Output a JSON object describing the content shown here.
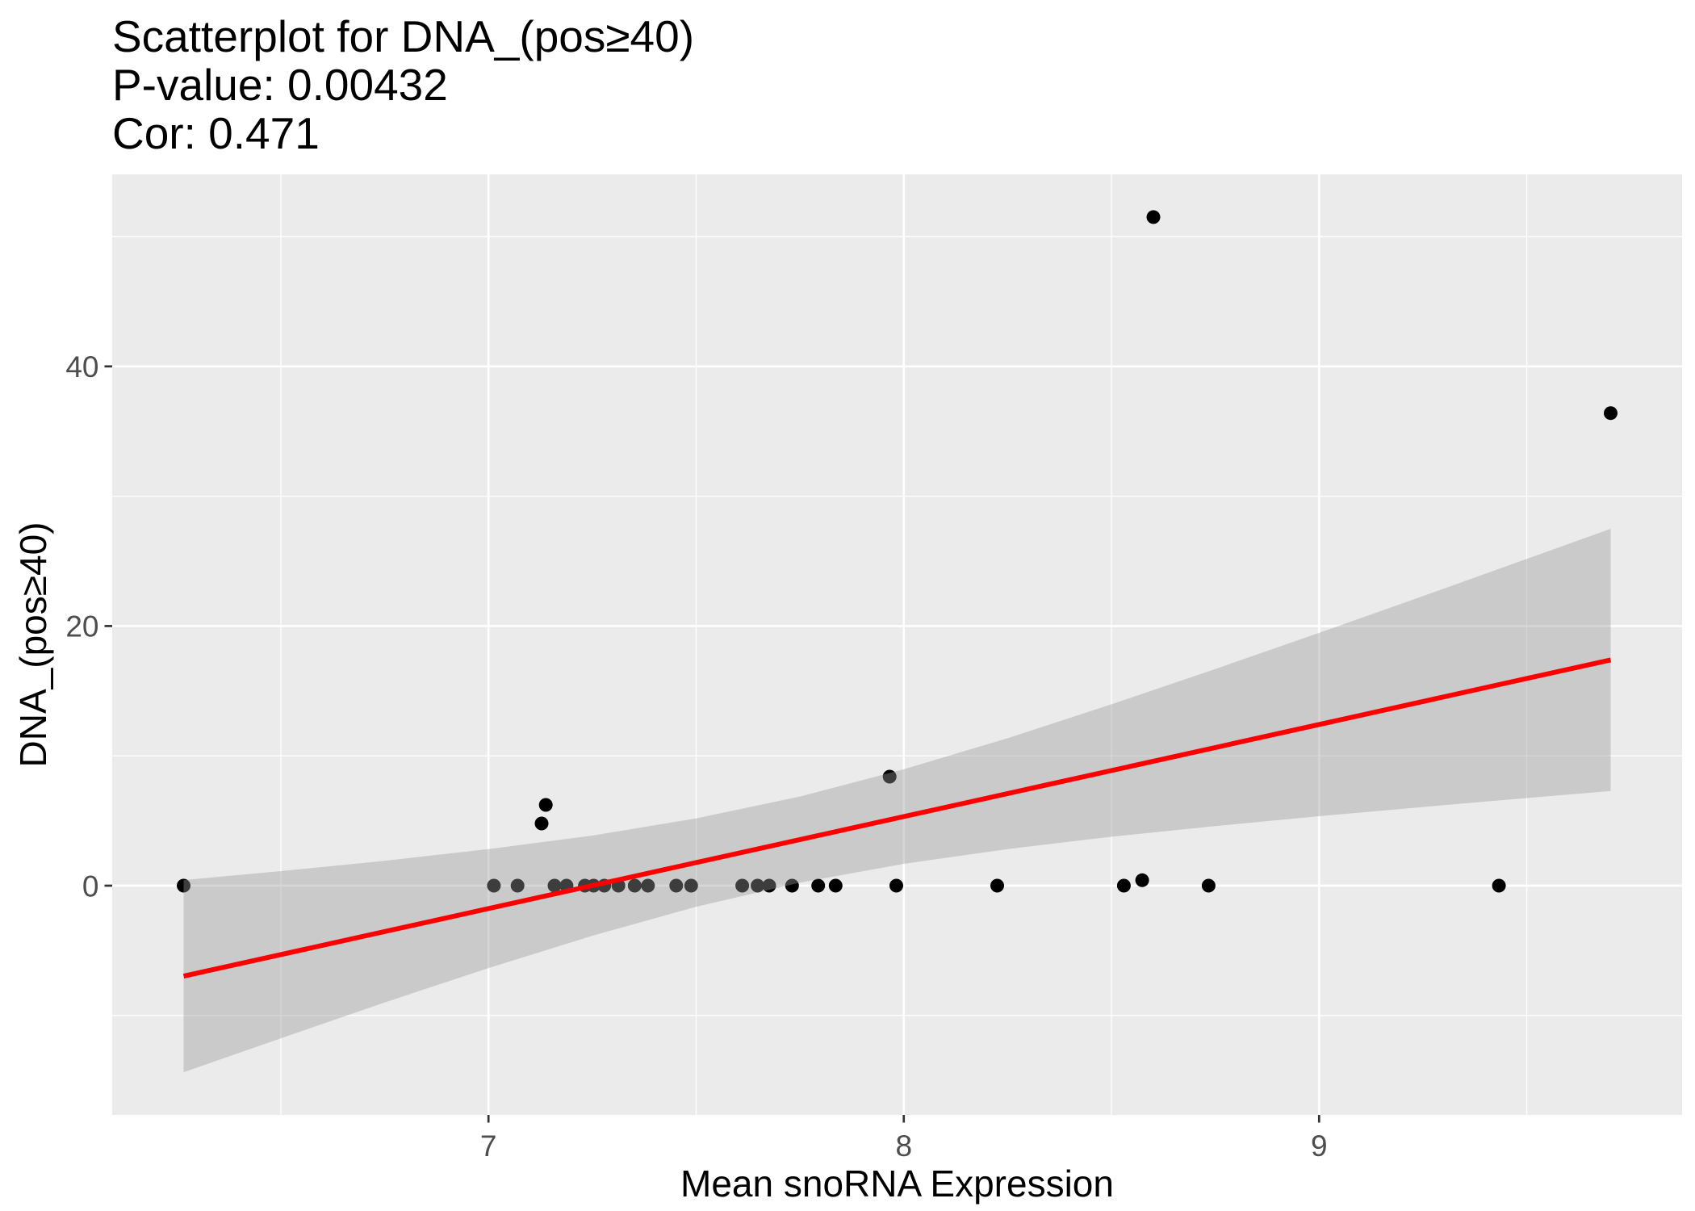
{
  "chart_data": {
    "type": "scatter",
    "title": "Scatterplot for DNA_(pos≥40)",
    "subtitle": [
      "P-value: 0.00432",
      "Cor: 0.471"
    ],
    "xlabel": "Mean snoRNA Expression",
    "ylabel": "DNA_(pos≥40)",
    "xlim": [
      6.094,
      9.874
    ],
    "ylim": [
      -17.66,
      54.79
    ],
    "x_ticks": [
      7,
      8,
      9
    ],
    "y_ticks": [
      0,
      20,
      40
    ],
    "grid": true,
    "legend": "none",
    "x": [
      6.266,
      7.013,
      7.07,
      7.128,
      7.138,
      7.159,
      7.188,
      7.232,
      7.253,
      7.279,
      7.313,
      7.352,
      7.384,
      7.452,
      7.488,
      7.611,
      7.648,
      7.676,
      7.731,
      7.794,
      7.836,
      7.966,
      7.982,
      8.225,
      8.53,
      8.574,
      8.601,
      8.734,
      9.433,
      9.702
    ],
    "y": [
      0,
      0,
      0,
      4.79,
      6.22,
      0,
      0,
      0,
      0,
      0,
      0,
      0,
      0,
      0,
      0,
      0,
      0,
      0,
      0,
      0,
      0,
      8.4,
      0,
      0,
      0,
      0.42,
      51.5,
      0,
      0,
      36.4
    ],
    "fit_line": {
      "x": [
        6.266,
        9.702
      ],
      "y": [
        -6.97,
        17.39
      ]
    },
    "confidence_band": {
      "x": [
        6.266,
        6.5,
        6.75,
        7.0,
        7.25,
        7.5,
        7.75,
        8.0,
        8.25,
        8.5,
        8.75,
        9.0,
        9.25,
        9.5,
        9.702
      ],
      "ymin": [
        -14.37,
        -11.76,
        -9.0,
        -6.35,
        -3.86,
        -1.62,
        0.23,
        1.68,
        2.82,
        3.77,
        4.59,
        5.35,
        6.06,
        6.75,
        7.29
      ],
      "ymax": [
        0.43,
        1.12,
        1.92,
        2.81,
        3.86,
        5.18,
        6.87,
        8.96,
        11.36,
        13.97,
        16.69,
        19.47,
        22.3,
        25.17,
        27.49
      ]
    }
  },
  "colors": {
    "panel_background": "#EBEBEB",
    "grid_line": "#FFFFFF",
    "point": "#000000",
    "fit_line": "#FF0000",
    "confidence_band": "#999999",
    "axis_tick": "#333333",
    "tick_label": "#4D4D4D"
  }
}
